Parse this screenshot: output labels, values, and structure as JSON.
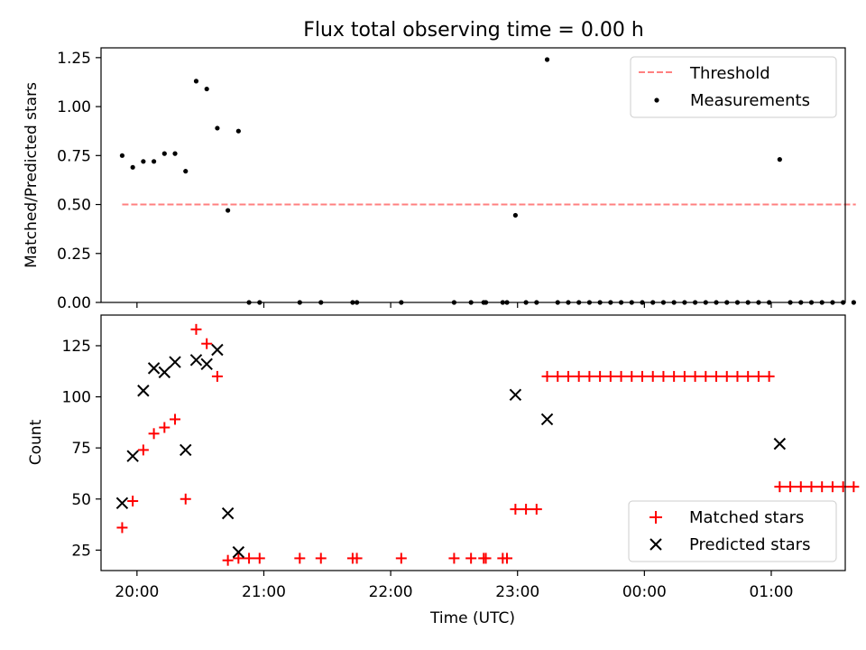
{
  "figure_title": "Flux total observing time = 0.00 h",
  "x_axis": {
    "label": "Time (UTC)",
    "ticks": [
      "20:00",
      "21:00",
      "22:00",
      "23:00",
      "00:00",
      "01:00"
    ]
  },
  "chart_data": [
    {
      "type": "scatter",
      "ylabel": "Matched/Predicted stars",
      "ylim": [
        0,
        1.3
      ],
      "yticks": [
        "0.00",
        "0.25",
        "0.50",
        "0.75",
        "1.00",
        "1.25"
      ],
      "xlim": [
        "19:43",
        "01:35"
      ],
      "threshold": {
        "name": "Threshold",
        "value": 0.5,
        "x_start": "19:53",
        "x_end": "01:40",
        "color": "#ff8080"
      },
      "legend_position": "upper right",
      "series": [
        {
          "name": "Measurements",
          "color": "#000000",
          "points": [
            [
              "19:53",
              0.75
            ],
            [
              "19:58",
              0.69
            ],
            [
              "20:03",
              0.72
            ],
            [
              "20:08",
              0.72
            ],
            [
              "20:13",
              0.76
            ],
            [
              "20:18",
              0.76
            ],
            [
              "20:23",
              0.67
            ],
            [
              "20:28",
              1.13
            ],
            [
              "20:33",
              1.09
            ],
            [
              "20:38",
              0.89
            ],
            [
              "20:43",
              0.47
            ],
            [
              "20:48",
              0.875
            ],
            [
              "20:53",
              0.0
            ],
            [
              "20:58",
              0.0
            ],
            [
              "21:17",
              0.0
            ],
            [
              "21:27",
              0.0
            ],
            [
              "21:42",
              0.0
            ],
            [
              "21:44",
              0.0
            ],
            [
              "22:05",
              0.0
            ],
            [
              "22:30",
              0.0
            ],
            [
              "22:38",
              0.0
            ],
            [
              "22:44",
              0.0
            ],
            [
              "22:45",
              0.0
            ],
            [
              "22:53",
              0.0
            ],
            [
              "22:55",
              0.0
            ],
            [
              "22:59",
              0.445
            ],
            [
              "23:04",
              0.0
            ],
            [
              "23:09",
              0.0
            ],
            [
              "23:14",
              1.24
            ],
            [
              "23:19",
              0.0
            ],
            [
              "23:24",
              0.0
            ],
            [
              "23:29",
              0.0
            ],
            [
              "23:34",
              0.0
            ],
            [
              "23:39",
              0.0
            ],
            [
              "23:44",
              0.0
            ],
            [
              "23:49",
              0.0
            ],
            [
              "23:54",
              0.0
            ],
            [
              "23:59",
              0.0
            ],
            [
              "00:04",
              0.0
            ],
            [
              "00:09",
              0.0
            ],
            [
              "00:14",
              0.0
            ],
            [
              "00:19",
              0.0
            ],
            [
              "00:24",
              0.0
            ],
            [
              "00:29",
              0.0
            ],
            [
              "00:34",
              0.0
            ],
            [
              "00:39",
              0.0
            ],
            [
              "00:44",
              0.0
            ],
            [
              "00:49",
              0.0
            ],
            [
              "00:54",
              0.0
            ],
            [
              "00:59",
              0.0
            ],
            [
              "01:04",
              0.73
            ],
            [
              "01:09",
              0.0
            ],
            [
              "01:14",
              0.0
            ],
            [
              "01:19",
              0.0
            ],
            [
              "01:24",
              0.0
            ],
            [
              "01:29",
              0.0
            ],
            [
              "01:34",
              0.0
            ],
            [
              "01:39",
              0.0
            ]
          ]
        }
      ]
    },
    {
      "type": "scatter",
      "ylabel": "Count",
      "ylim": [
        15,
        140
      ],
      "yticks": [
        "25",
        "50",
        "75",
        "100",
        "125"
      ],
      "xlim": [
        "19:43",
        "01:35"
      ],
      "legend_position": "lower right",
      "series": [
        {
          "name": "Matched stars",
          "color": "#ff0000",
          "marker": "plus",
          "points": [
            [
              "19:53",
              36
            ],
            [
              "19:58",
              49
            ],
            [
              "20:03",
              74
            ],
            [
              "20:08",
              82
            ],
            [
              "20:13",
              85
            ],
            [
              "20:18",
              89
            ],
            [
              "20:23",
              50
            ],
            [
              "20:28",
              133
            ],
            [
              "20:33",
              126
            ],
            [
              "20:38",
              110
            ],
            [
              "20:43",
              20
            ],
            [
              "20:48",
              21
            ],
            [
              "20:53",
              21
            ],
            [
              "20:58",
              21
            ],
            [
              "21:17",
              21
            ],
            [
              "21:27",
              21
            ],
            [
              "21:42",
              21
            ],
            [
              "21:44",
              21
            ],
            [
              "22:05",
              21
            ],
            [
              "22:30",
              21
            ],
            [
              "22:38",
              21
            ],
            [
              "22:44",
              21
            ],
            [
              "22:45",
              21
            ],
            [
              "22:53",
              21
            ],
            [
              "22:55",
              21
            ],
            [
              "22:59",
              45
            ],
            [
              "23:04",
              45
            ],
            [
              "23:09",
              45
            ],
            [
              "23:14",
              110
            ],
            [
              "23:19",
              110
            ],
            [
              "23:24",
              110
            ],
            [
              "23:29",
              110
            ],
            [
              "23:34",
              110
            ],
            [
              "23:39",
              110
            ],
            [
              "23:44",
              110
            ],
            [
              "23:49",
              110
            ],
            [
              "23:54",
              110
            ],
            [
              "23:59",
              110
            ],
            [
              "00:04",
              110
            ],
            [
              "00:09",
              110
            ],
            [
              "00:14",
              110
            ],
            [
              "00:19",
              110
            ],
            [
              "00:24",
              110
            ],
            [
              "00:29",
              110
            ],
            [
              "00:34",
              110
            ],
            [
              "00:39",
              110
            ],
            [
              "00:44",
              110
            ],
            [
              "00:49",
              110
            ],
            [
              "00:54",
              110
            ],
            [
              "00:59",
              110
            ],
            [
              "01:04",
              56
            ],
            [
              "01:09",
              56
            ],
            [
              "01:14",
              56
            ],
            [
              "01:19",
              56
            ],
            [
              "01:24",
              56
            ],
            [
              "01:29",
              56
            ],
            [
              "01:34",
              56
            ],
            [
              "01:39",
              56
            ]
          ]
        },
        {
          "name": "Predicted stars",
          "color": "#000000",
          "marker": "x",
          "points": [
            [
              "19:53",
              48
            ],
            [
              "19:58",
              71
            ],
            [
              "20:03",
              103
            ],
            [
              "20:08",
              114
            ],
            [
              "20:13",
              112
            ],
            [
              "20:18",
              117
            ],
            [
              "20:23",
              74
            ],
            [
              "20:28",
              118
            ],
            [
              "20:33",
              116
            ],
            [
              "20:38",
              123
            ],
            [
              "20:43",
              43
            ],
            [
              "20:48",
              24
            ],
            [
              "22:59",
              101
            ],
            [
              "23:14",
              89
            ],
            [
              "01:04",
              77
            ]
          ]
        }
      ]
    }
  ]
}
